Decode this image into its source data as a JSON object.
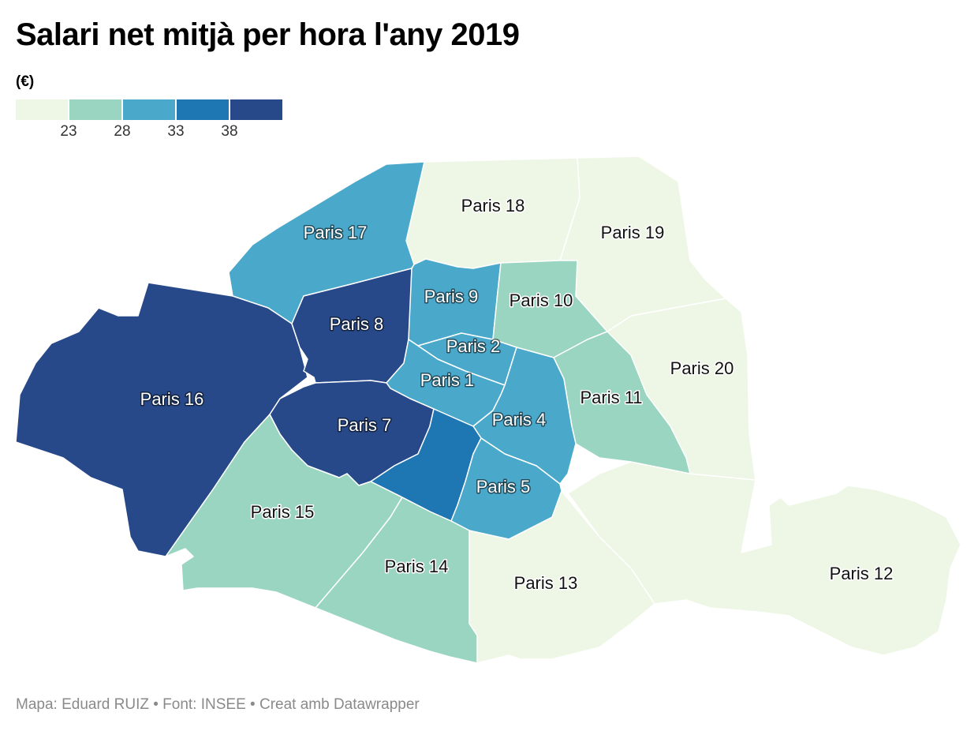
{
  "title": "Salari net mitjà per hora l'any 2019",
  "legend": {
    "unit": "(€)",
    "ticks": [
      "23",
      "28",
      "33",
      "38"
    ],
    "colors": [
      "#eef7e6",
      "#99d5c1",
      "#4aa8cb",
      "#1e76b3",
      "#27498a"
    ]
  },
  "districts": [
    {
      "id": "p1",
      "label": "Paris 1",
      "class_index": 2
    },
    {
      "id": "p2",
      "label": "Paris 2",
      "class_index": 2
    },
    {
      "id": "p4",
      "label": "Paris 4",
      "class_index": 2
    },
    {
      "id": "p5",
      "label": "Paris 5",
      "class_index": 2
    },
    {
      "id": "p6",
      "label": "",
      "class_index": 3
    },
    {
      "id": "p7",
      "label": "Paris 7",
      "class_index": 4
    },
    {
      "id": "p8",
      "label": "Paris 8",
      "class_index": 4
    },
    {
      "id": "p9",
      "label": "Paris 9",
      "class_index": 2
    },
    {
      "id": "p10",
      "label": "Paris 10",
      "class_index": 1
    },
    {
      "id": "p11",
      "label": "Paris 11",
      "class_index": 1
    },
    {
      "id": "p12",
      "label": "Paris 12",
      "class_index": 0
    },
    {
      "id": "p13",
      "label": "Paris 13",
      "class_index": 0
    },
    {
      "id": "p14",
      "label": "Paris 14",
      "class_index": 1
    },
    {
      "id": "p15",
      "label": "Paris 15",
      "class_index": 1
    },
    {
      "id": "p16",
      "label": "Paris 16",
      "class_index": 4
    },
    {
      "id": "p17",
      "label": "Paris 17",
      "class_index": 2
    },
    {
      "id": "p18",
      "label": "Paris 18",
      "class_index": 0
    },
    {
      "id": "p19",
      "label": "Paris 19",
      "class_index": 0
    },
    {
      "id": "p20",
      "label": "Paris 20",
      "class_index": 0
    }
  ],
  "footer": "Mapa: Eduard RUIZ • Font: INSEE • Creat amb Datawrapper"
}
